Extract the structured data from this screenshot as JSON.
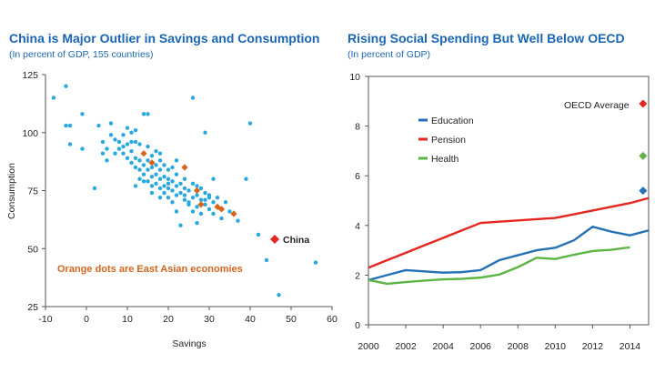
{
  "colors": {
    "title": "#1a66b5",
    "dots": "#29a8df",
    "east_asia": "#d4651e",
    "china": "#e3261f",
    "education": "#2370b4",
    "pension": "#e3261f",
    "health": "#5cb445",
    "axis": "#555555",
    "annotation": "#d4651e"
  },
  "chart_data": [
    {
      "type": "scatter",
      "title": "China is Major Outlier in Savings and Consumption",
      "subtitle": "(In percent of GDP, 155 countries)",
      "xlabel": "Savings",
      "ylabel": "Consumption",
      "xlim": [
        -10,
        60
      ],
      "ylim": [
        25,
        125
      ],
      "x_ticks": [
        "-10",
        "0",
        "10",
        "20",
        "30",
        "40",
        "50",
        "60"
      ],
      "y_ticks": [
        "25",
        "50",
        "75",
        "100",
        "125"
      ],
      "grid": false,
      "annotation": "Orange dots are East Asian economies",
      "highlight": {
        "label": "China",
        "x": 46,
        "y": 54
      },
      "series": [
        {
          "name": "",
          "points": [
            [
              -8,
              115
            ],
            [
              -5,
              120
            ],
            [
              -5,
              103
            ],
            [
              -4,
              103
            ],
            [
              -4,
              95
            ],
            [
              -1,
              108
            ],
            [
              -1,
              93
            ],
            [
              2,
              76
            ],
            [
              3,
              103
            ],
            [
              4,
              96
            ],
            [
              4,
              91
            ],
            [
              5,
              93
            ],
            [
              5,
              88
            ],
            [
              6,
              104
            ],
            [
              7,
              97
            ],
            [
              7,
              91
            ],
            [
              8,
              96
            ],
            [
              8,
              93
            ],
            [
              9,
              94
            ],
            [
              9,
              91
            ],
            [
              10,
              102
            ],
            [
              10,
              95
            ],
            [
              10,
              89
            ],
            [
              11,
              100
            ],
            [
              11,
              92
            ],
            [
              11,
              87
            ],
            [
              12,
              101
            ],
            [
              12,
              96
            ],
            [
              12,
              89
            ],
            [
              12,
              85
            ],
            [
              12,
              77
            ],
            [
              13,
              95
            ],
            [
              13,
              88
            ],
            [
              13,
              84
            ],
            [
              13,
              80
            ],
            [
              14,
              108
            ],
            [
              14,
              91
            ],
            [
              14,
              86
            ],
            [
              14,
              82
            ],
            [
              15,
              108
            ],
            [
              15,
              94
            ],
            [
              15,
              88
            ],
            [
              15,
              84
            ],
            [
              15,
              79
            ],
            [
              16,
              90
            ],
            [
              16,
              85
            ],
            [
              16,
              81
            ],
            [
              16,
              77
            ],
            [
              17,
              92
            ],
            [
              17,
              86
            ],
            [
              17,
              82
            ],
            [
              17,
              78
            ],
            [
              18,
              88
            ],
            [
              18,
              84
            ],
            [
              18,
              80
            ],
            [
              18,
              76
            ],
            [
              18,
              72
            ],
            [
              19,
              86
            ],
            [
              19,
              81
            ],
            [
              19,
              77
            ],
            [
              19,
              74
            ],
            [
              20,
              84
            ],
            [
              20,
              80
            ],
            [
              20,
              76
            ],
            [
              20,
              72
            ],
            [
              21,
              85
            ],
            [
              21,
              79
            ],
            [
              21,
              75
            ],
            [
              21,
              70
            ],
            [
              22,
              82
            ],
            [
              22,
              77
            ],
            [
              22,
              73
            ],
            [
              22,
              66
            ],
            [
              23,
              78
            ],
            [
              23,
              74
            ],
            [
              23,
              60
            ],
            [
              24,
              80
            ],
            [
              24,
              76
            ],
            [
              24,
              71
            ],
            [
              25,
              75
            ],
            [
              25,
              69
            ],
            [
              26,
              115
            ],
            [
              26,
              78
            ],
            [
              26,
              72
            ],
            [
              26,
              66
            ],
            [
              27,
              77
            ],
            [
              27,
              73
            ],
            [
              27,
              68
            ],
            [
              28,
              76
            ],
            [
              28,
              71
            ],
            [
              28,
              65
            ],
            [
              29,
              100
            ],
            [
              29,
              74
            ],
            [
              29,
              69
            ],
            [
              30,
              72
            ],
            [
              30,
              67
            ],
            [
              31,
              80
            ],
            [
              31,
              70
            ],
            [
              31,
              65
            ],
            [
              32,
              68
            ],
            [
              33,
              63
            ],
            [
              34,
              70
            ],
            [
              35,
              66
            ],
            [
              36,
              65
            ],
            [
              37,
              62
            ],
            [
              39,
              80
            ],
            [
              40,
              104
            ],
            [
              42,
              56
            ],
            [
              44,
              45
            ],
            [
              47,
              30
            ],
            [
              56,
              44
            ],
            [
              20,
              78
            ],
            [
              24,
              73
            ],
            [
              11,
              96
            ],
            [
              16,
              74
            ],
            [
              27,
              61
            ],
            [
              32,
              72
            ],
            [
              6,
              99
            ],
            [
              9,
              99
            ],
            [
              22,
              88
            ],
            [
              25,
              70
            ],
            [
              29,
              71
            ],
            [
              30,
              73
            ],
            [
              18,
              91
            ],
            [
              14,
              79
            ]
          ]
        },
        {
          "name": "East Asian economies",
          "points": [
            [
              14,
              91
            ],
            [
              16,
              87
            ],
            [
              24,
              85
            ],
            [
              27,
              75
            ],
            [
              28,
              69
            ],
            [
              32,
              68
            ],
            [
              33,
              67
            ],
            [
              36,
              65
            ]
          ]
        }
      ]
    },
    {
      "type": "line",
      "title": "Rising Social Spending But Well Below OECD",
      "subtitle": "(In percent of GDP)",
      "xlabel": "",
      "ylabel": "",
      "xlim": [
        2000,
        2015
      ],
      "ylim": [
        0,
        10
      ],
      "x_ticks": [
        "2000",
        "2002",
        "2004",
        "2006",
        "2008",
        "2010",
        "2012",
        "2014"
      ],
      "y_ticks": [
        "0",
        "2",
        "4",
        "6",
        "8",
        "10"
      ],
      "grid": false,
      "legend": "top-left",
      "oecd_label": "OECD Average",
      "oecd_points": [
        {
          "series": "Pension",
          "x": 2014.7,
          "y": 8.9
        },
        {
          "series": "Health",
          "x": 2014.7,
          "y": 6.8
        },
        {
          "series": "Education",
          "x": 2014.7,
          "y": 5.4
        }
      ],
      "x": [
        2000,
        2001,
        2002,
        2003,
        2004,
        2005,
        2006,
        2007,
        2008,
        2009,
        2010,
        2011,
        2012,
        2013,
        2014,
        2015
      ],
      "series": [
        {
          "name": "Education",
          "values": [
            1.8,
            2.0,
            2.2,
            2.15,
            2.1,
            2.12,
            2.2,
            2.6,
            2.8,
            3.0,
            3.1,
            3.4,
            3.95,
            3.75,
            3.6,
            3.8
          ]
        },
        {
          "name": "Pension",
          "values": [
            2.3,
            2.6,
            2.9,
            3.2,
            3.5,
            3.8,
            4.1,
            4.15,
            4.2,
            4.25,
            4.3,
            4.45,
            4.6,
            4.75,
            4.9,
            5.1
          ]
        },
        {
          "name": "Health",
          "values": [
            1.8,
            1.65,
            1.72,
            1.78,
            1.83,
            1.85,
            1.9,
            2.02,
            2.32,
            2.7,
            2.65,
            2.82,
            2.97,
            3.02,
            3.12,
            null
          ]
        }
      ]
    }
  ]
}
